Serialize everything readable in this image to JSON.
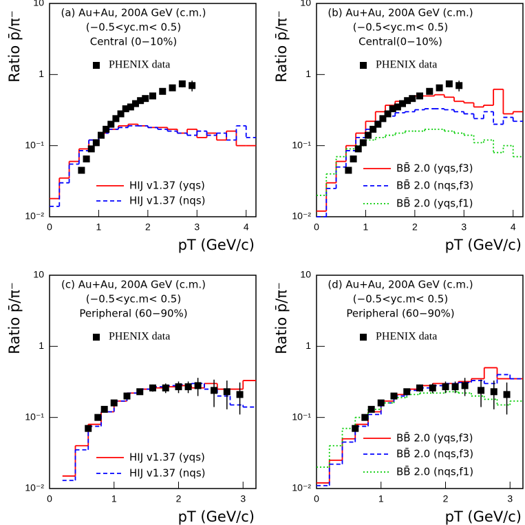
{
  "chart_data": [
    {
      "type": "line",
      "annotations": [
        "(a) Au+Au, 200A GeV (c.m.)",
        "(−0.5<yc.m< 0.5)",
        "Central (0−10%)"
      ],
      "x_label": "pT (GeV/c)",
      "y_label": "Ratio p̄/π⁻",
      "log_y": true,
      "xlim": [
        0,
        4.2
      ],
      "xticks": [
        0,
        1,
        2,
        3,
        4
      ],
      "ylim": [
        0.01,
        10
      ],
      "yticks": [
        {
          "value": 0.01,
          "label": "10⁻²"
        },
        {
          "value": 0.1,
          "label": "10⁻¹"
        },
        1,
        10
      ],
      "x": [
        0.1,
        0.3,
        0.5,
        0.7,
        0.9,
        1.1,
        1.3,
        1.5,
        1.7,
        1.9,
        2.1,
        2.3,
        2.5,
        2.7,
        2.9,
        3.1,
        3.3,
        3.5,
        3.7,
        3.9,
        4.1
      ],
      "series": [
        {
          "name": "HIJ v1.37 (yqs)",
          "color": "#ff0000",
          "style": "solid",
          "values": [
            0.018,
            0.035,
            0.06,
            0.09,
            0.12,
            0.15,
            0.17,
            0.19,
            0.2,
            0.19,
            0.18,
            0.18,
            0.17,
            0.15,
            0.17,
            0.13,
            0.15,
            0.12,
            0.16,
            0.1,
            0.1
          ]
        },
        {
          "name": "HIJ v1.37 (nqs)",
          "color": "#0000ff",
          "style": "dashed",
          "values": [
            0.014,
            0.03,
            0.055,
            0.085,
            0.12,
            0.15,
            0.17,
            0.18,
            0.19,
            0.19,
            0.18,
            0.17,
            0.16,
            0.15,
            0.14,
            0.16,
            0.14,
            0.15,
            0.12,
            0.19,
            0.13
          ]
        }
      ],
      "data": {
        "name": "PHENIX data",
        "color": "#000000",
        "x": [
          0.65,
          0.75,
          0.85,
          0.95,
          1.05,
          1.15,
          1.25,
          1.35,
          1.45,
          1.55,
          1.65,
          1.75,
          1.85,
          1.95,
          2.1,
          2.3,
          2.5,
          2.7,
          2.9
        ],
        "values": [
          0.045,
          0.065,
          0.09,
          0.11,
          0.14,
          0.17,
          0.2,
          0.24,
          0.28,
          0.33,
          0.35,
          0.39,
          0.43,
          0.46,
          0.5,
          0.58,
          0.65,
          0.74,
          0.7
        ],
        "errors": [
          0,
          0,
          0,
          0,
          0,
          0,
          0,
          0,
          0,
          0,
          0,
          0,
          0,
          0,
          0,
          0,
          0,
          0.08,
          0.12
        ]
      }
    },
    {
      "type": "line",
      "annotations": [
        "(b) Au+Au, 200A GeV (c.m.)",
        "(−0.5<yc.m< 0.5)",
        "Central(0−10%)"
      ],
      "x_label": "pT (GeV/c)",
      "y_label": "Ratio p̄/π⁻",
      "log_y": true,
      "xlim": [
        0,
        4.2
      ],
      "xticks": [
        0,
        1,
        2,
        3,
        4
      ],
      "ylim": [
        0.01,
        10
      ],
      "yticks": [
        {
          "value": 0.01,
          "label": "10⁻²"
        },
        {
          "value": 0.1,
          "label": "10⁻¹"
        },
        1,
        10
      ],
      "x": [
        0.1,
        0.3,
        0.5,
        0.7,
        0.9,
        1.1,
        1.3,
        1.5,
        1.7,
        1.9,
        2.1,
        2.3,
        2.5,
        2.7,
        2.9,
        3.1,
        3.3,
        3.5,
        3.7,
        3.9,
        4.1
      ],
      "series": [
        {
          "name": "BB̄ 2.0 (yqs,f3)",
          "color": "#ff0000",
          "style": "solid",
          "values": [
            0.012,
            0.03,
            0.06,
            0.1,
            0.15,
            0.22,
            0.3,
            0.37,
            0.42,
            0.46,
            0.5,
            0.5,
            0.52,
            0.48,
            0.42,
            0.4,
            0.35,
            0.37,
            0.62,
            0.28,
            0.3
          ]
        },
        {
          "name": "BB̄ 2.0 (nqs,f3)",
          "color": "#0000ff",
          "style": "dashed",
          "values": [
            0.01,
            0.025,
            0.05,
            0.085,
            0.13,
            0.17,
            0.22,
            0.26,
            0.29,
            0.3,
            0.32,
            0.33,
            0.33,
            0.32,
            0.3,
            0.28,
            0.24,
            0.3,
            0.2,
            0.25,
            0.22
          ]
        },
        {
          "name": "BB̄ 2.0 (yqs,f1)",
          "color": "#00cc00",
          "style": "dotted",
          "values": [
            0.02,
            0.04,
            0.07,
            0.09,
            0.1,
            0.12,
            0.13,
            0.14,
            0.15,
            0.16,
            0.16,
            0.17,
            0.17,
            0.16,
            0.15,
            0.14,
            0.11,
            0.12,
            0.08,
            0.1,
            0.07
          ]
        }
      ],
      "data": {
        "name": "PHENIX data",
        "color": "#000000",
        "x": [
          0.65,
          0.75,
          0.85,
          0.95,
          1.05,
          1.15,
          1.25,
          1.35,
          1.45,
          1.55,
          1.65,
          1.75,
          1.85,
          1.95,
          2.1,
          2.3,
          2.5,
          2.7,
          2.9
        ],
        "values": [
          0.045,
          0.065,
          0.09,
          0.11,
          0.14,
          0.17,
          0.2,
          0.24,
          0.28,
          0.33,
          0.35,
          0.39,
          0.43,
          0.46,
          0.5,
          0.58,
          0.65,
          0.74,
          0.7
        ],
        "errors": [
          0,
          0,
          0,
          0,
          0,
          0,
          0,
          0,
          0,
          0,
          0,
          0,
          0,
          0,
          0,
          0,
          0,
          0.08,
          0.12
        ]
      }
    },
    {
      "type": "line",
      "annotations": [
        "(c) Au+Au, 200A GeV (c.m.)",
        "(−0.5<yc.m< 0.5)",
        "Peripheral (60−90%)"
      ],
      "x_label": "pT (GeV/c)",
      "y_label": "Ratio p̄/π⁻",
      "log_y": true,
      "xlim": [
        0,
        3.2
      ],
      "xticks": [
        0,
        1,
        2,
        3
      ],
      "ylim": [
        0.01,
        10
      ],
      "yticks": [
        {
          "value": 0.01,
          "label": "10⁻²"
        },
        {
          "value": 0.1,
          "label": "10⁻¹"
        },
        1,
        10
      ],
      "x": [
        0.1,
        0.3,
        0.5,
        0.7,
        0.9,
        1.1,
        1.3,
        1.5,
        1.7,
        1.9,
        2.1,
        2.3,
        2.5,
        2.7,
        2.9,
        3.1
      ],
      "series": [
        {
          "name": "HIJ v1.37 (yqs)",
          "color": "#ff0000",
          "style": "solid",
          "values": [
            null,
            0.015,
            0.04,
            0.08,
            0.12,
            0.17,
            0.22,
            0.25,
            0.26,
            0.27,
            0.28,
            0.26,
            0.3,
            0.25,
            0.25,
            0.33
          ]
        },
        {
          "name": "HIJ v1.37 (nqs)",
          "color": "#0000ff",
          "style": "dashed",
          "values": [
            null,
            0.013,
            0.035,
            0.075,
            0.12,
            0.17,
            0.22,
            0.25,
            0.27,
            0.28,
            0.29,
            0.3,
            0.25,
            0.2,
            0.15,
            0.14
          ]
        }
      ],
      "data": {
        "name": "PHENIX data",
        "color": "#000000",
        "x": [
          0.6,
          0.75,
          0.85,
          1.0,
          1.2,
          1.4,
          1.6,
          1.8,
          2.0,
          2.15,
          2.3,
          2.55,
          2.75,
          2.95
        ],
        "values": [
          0.07,
          0.1,
          0.13,
          0.16,
          0.2,
          0.23,
          0.26,
          0.26,
          0.27,
          0.27,
          0.28,
          0.24,
          0.23,
          0.21
        ],
        "errors": [
          0,
          0,
          0,
          0,
          0,
          0,
          0.03,
          0.04,
          0.05,
          0.05,
          0.08,
          0.1,
          0.1,
          0.1
        ]
      }
    },
    {
      "type": "line",
      "annotations": [
        "(d) Au+Au, 200A GeV (c.m.)",
        "(−0.5<yc.m< 0.5)",
        "Peripheral (60−90%)"
      ],
      "x_label": "pT (GeV/c)",
      "y_label": "Ratio p̄/π⁻",
      "log_y": true,
      "xlim": [
        0,
        3.2
      ],
      "xticks": [
        0,
        1,
        2,
        3
      ],
      "ylim": [
        0.01,
        10
      ],
      "yticks": [
        {
          "value": 0.01,
          "label": "10⁻²"
        },
        {
          "value": 0.1,
          "label": "10⁻¹"
        },
        1,
        10
      ],
      "x": [
        0.1,
        0.3,
        0.5,
        0.7,
        0.9,
        1.1,
        1.3,
        1.5,
        1.7,
        1.9,
        2.1,
        2.3,
        2.5,
        2.7,
        2.9,
        3.1
      ],
      "series": [
        {
          "name": "BB̄ 2.0 (yqs,f3)",
          "color": "#ff0000",
          "style": "solid",
          "values": [
            0.012,
            0.025,
            0.05,
            0.08,
            0.12,
            0.17,
            0.21,
            0.25,
            0.28,
            0.3,
            0.3,
            0.32,
            0.35,
            0.5,
            0.35,
            0.35
          ]
        },
        {
          "name": "BB̄ 2.0 (nqs,f3)",
          "color": "#0000ff",
          "style": "dashed",
          "values": [
            0.011,
            0.022,
            0.045,
            0.075,
            0.11,
            0.16,
            0.2,
            0.24,
            0.26,
            0.28,
            0.3,
            0.31,
            0.33,
            0.3,
            0.4,
            0.35
          ]
        },
        {
          "name": "BB̄ 2.0 (nqs,f1)",
          "color": "#00cc00",
          "style": "dotted",
          "values": [
            0.02,
            0.04,
            0.07,
            0.1,
            0.13,
            0.16,
            0.19,
            0.21,
            0.22,
            0.22,
            0.23,
            0.22,
            0.2,
            0.18,
            0.15,
            0.17
          ]
        }
      ],
      "data": {
        "name": "PHENIX data",
        "color": "#000000",
        "x": [
          0.6,
          0.75,
          0.85,
          1.0,
          1.2,
          1.4,
          1.6,
          1.8,
          2.0,
          2.15,
          2.3,
          2.55,
          2.75,
          2.95
        ],
        "values": [
          0.07,
          0.1,
          0.13,
          0.16,
          0.2,
          0.23,
          0.26,
          0.26,
          0.27,
          0.27,
          0.28,
          0.24,
          0.23,
          0.21
        ],
        "errors": [
          0,
          0,
          0,
          0,
          0,
          0,
          0.03,
          0.04,
          0.05,
          0.05,
          0.08,
          0.1,
          0.1,
          0.1
        ]
      }
    }
  ]
}
